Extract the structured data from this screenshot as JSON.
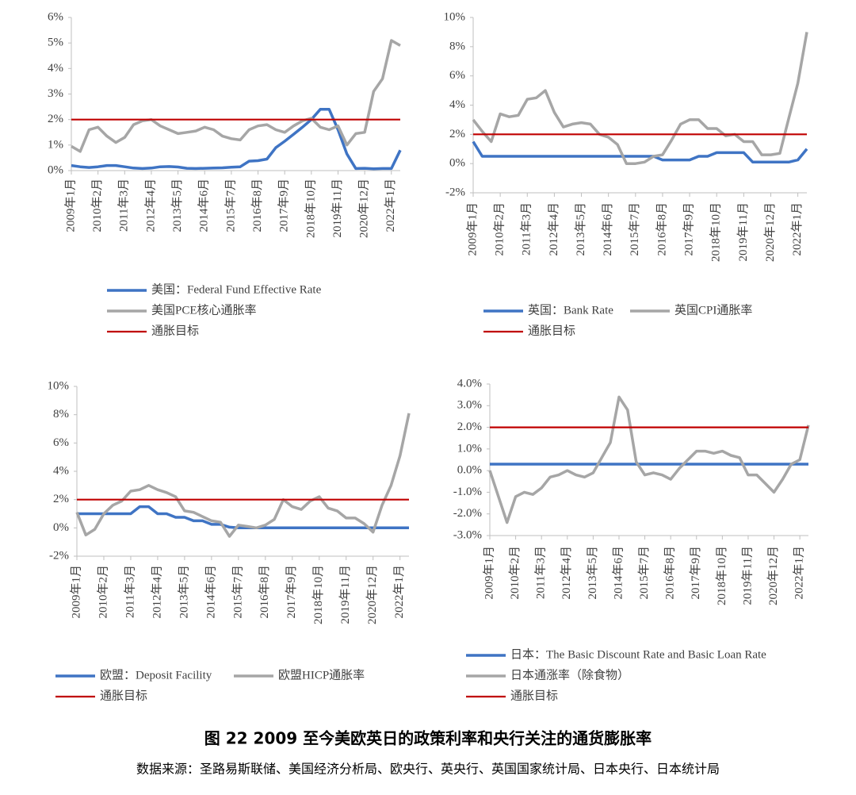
{
  "chart_data": [
    {
      "type": "line",
      "categories": [
        "2009年1月",
        null,
        null,
        "2010年2月",
        null,
        null,
        "2011年3月",
        null,
        null,
        "2012年4月",
        null,
        null,
        "2013年5月",
        null,
        null,
        "2014年6月",
        null,
        null,
        "2015年7月",
        null,
        null,
        "2016年8月",
        null,
        null,
        "2017年9月",
        null,
        null,
        "2018年10月",
        null,
        null,
        "2019年11月",
        null,
        null,
        "2020年12月",
        null,
        null,
        "2022年1月",
        null
      ],
      "series": [
        {
          "name": "美国：Federal Fund Effective Rate",
          "color": "#3f74c4",
          "values": [
            0.2,
            0.15,
            0.12,
            0.15,
            0.2,
            0.2,
            0.15,
            0.1,
            0.08,
            0.1,
            0.15,
            0.16,
            0.14,
            0.09,
            0.08,
            0.09,
            0.1,
            0.11,
            0.13,
            0.15,
            0.37,
            0.39,
            0.45,
            0.9,
            1.15,
            1.42,
            1.7,
            2.0,
            2.4,
            2.4,
            1.6,
            0.65,
            0.08,
            0.09,
            0.07,
            0.08,
            0.08,
            0.8
          ]
        },
        {
          "name": "美国PCE核心通胀率",
          "color": "#a6a6a6",
          "values": [
            0.95,
            0.75,
            1.6,
            1.7,
            1.35,
            1.1,
            1.3,
            1.8,
            1.95,
            2.0,
            1.75,
            1.6,
            1.45,
            1.5,
            1.55,
            1.7,
            1.6,
            1.35,
            1.25,
            1.2,
            1.6,
            1.75,
            1.8,
            1.6,
            1.5,
            1.75,
            1.95,
            2.05,
            1.7,
            1.6,
            1.75,
            1.0,
            1.45,
            1.5,
            3.1,
            3.6,
            5.1,
            4.9
          ]
        },
        {
          "name": "通胀目标",
          "color": "#c00000",
          "values": [
            2,
            2,
            2,
            2,
            2,
            2,
            2,
            2,
            2,
            2,
            2,
            2,
            2,
            2,
            2,
            2,
            2,
            2,
            2,
            2,
            2,
            2,
            2,
            2,
            2,
            2,
            2,
            2,
            2,
            2,
            2,
            2,
            2,
            2,
            2,
            2,
            2,
            2
          ]
        }
      ],
      "ylim": [
        0,
        6
      ],
      "yticks": [
        {
          "value": 0,
          "label": "0%"
        },
        {
          "value": 1,
          "label": "1%"
        },
        {
          "value": 2,
          "label": "2%"
        },
        {
          "value": 3,
          "label": "3%"
        },
        {
          "value": 4,
          "label": "4%"
        },
        {
          "value": 5,
          "label": "5%"
        },
        {
          "value": 6,
          "label": "6%"
        }
      ]
    },
    {
      "type": "line",
      "categories": [
        "2009年1月",
        null,
        null,
        "2010年2月",
        null,
        null,
        "2011年3月",
        null,
        null,
        "2012年4月",
        null,
        null,
        "2013年5月",
        null,
        null,
        "2014年6月",
        null,
        null,
        "2015年7月",
        null,
        null,
        "2016年8月",
        null,
        null,
        "2017年9月",
        null,
        null,
        "2018年10月",
        null,
        null,
        "2019年11月",
        null,
        null,
        "2020年12月",
        null,
        null,
        "2022年1月",
        null
      ],
      "series": [
        {
          "name": "英国：Bank Rate",
          "color": "#3f74c4",
          "values": [
            1.5,
            0.5,
            0.5,
            0.5,
            0.5,
            0.5,
            0.5,
            0.5,
            0.5,
            0.5,
            0.5,
            0.5,
            0.5,
            0.5,
            0.5,
            0.5,
            0.5,
            0.5,
            0.5,
            0.5,
            0.5,
            0.25,
            0.25,
            0.25,
            0.25,
            0.5,
            0.5,
            0.75,
            0.75,
            0.75,
            0.75,
            0.1,
            0.1,
            0.1,
            0.1,
            0.1,
            0.25,
            1.0
          ]
        },
        {
          "name": "英国CPI通胀率",
          "color": "#a6a6a6",
          "values": [
            3.0,
            2.2,
            1.5,
            3.4,
            3.2,
            3.3,
            4.4,
            4.5,
            5.0,
            3.5,
            2.5,
            2.7,
            2.8,
            2.7,
            2.0,
            1.8,
            1.3,
            0.0,
            0.0,
            0.1,
            0.5,
            0.6,
            1.6,
            2.7,
            3.0,
            3.0,
            2.4,
            2.4,
            1.9,
            2.0,
            1.5,
            1.5,
            0.6,
            0.6,
            0.7,
            3.1,
            5.5,
            9.0
          ]
        },
        {
          "name": "通胀目标",
          "color": "#c00000",
          "values": [
            2,
            2,
            2,
            2,
            2,
            2,
            2,
            2,
            2,
            2,
            2,
            2,
            2,
            2,
            2,
            2,
            2,
            2,
            2,
            2,
            2,
            2,
            2,
            2,
            2,
            2,
            2,
            2,
            2,
            2,
            2,
            2,
            2,
            2,
            2,
            2,
            2,
            2
          ]
        }
      ],
      "ylim": [
        -2,
        10
      ],
      "yticks": [
        {
          "value": -2,
          "label": "-2%"
        },
        {
          "value": 0,
          "label": "0%"
        },
        {
          "value": 2,
          "label": "2%"
        },
        {
          "value": 4,
          "label": "4%"
        },
        {
          "value": 6,
          "label": "6%"
        },
        {
          "value": 8,
          "label": "8%"
        },
        {
          "value": 10,
          "label": "10%"
        }
      ]
    },
    {
      "type": "line",
      "categories": [
        "2009年1月",
        null,
        null,
        "2010年2月",
        null,
        null,
        "2011年3月",
        null,
        null,
        "2012年4月",
        null,
        null,
        "2013年5月",
        null,
        null,
        "2014年6月",
        null,
        null,
        "2015年7月",
        null,
        null,
        "2016年8月",
        null,
        null,
        "2017年9月",
        null,
        null,
        "2018年10月",
        null,
        null,
        "2019年11月",
        null,
        null,
        "2020年12月",
        null,
        null,
        "2022年1月",
        null
      ],
      "series": [
        {
          "name": "欧盟：Deposit Facility",
          "color": "#3f74c4",
          "values": [
            1.0,
            1.0,
            1.0,
            1.0,
            1.0,
            1.0,
            1.0,
            1.5,
            1.5,
            1.0,
            1.0,
            0.75,
            0.75,
            0.5,
            0.5,
            0.25,
            0.25,
            0.05,
            0,
            0,
            0,
            0,
            0,
            0,
            0,
            0,
            0,
            0,
            0,
            0,
            0,
            0,
            0,
            0,
            0,
            0,
            0,
            0
          ]
        },
        {
          "name": "欧盟HICP通胀率",
          "color": "#a6a6a6",
          "values": [
            1.1,
            -0.5,
            -0.1,
            1.0,
            1.6,
            1.9,
            2.6,
            2.7,
            3.0,
            2.7,
            2.5,
            2.2,
            1.2,
            1.1,
            0.8,
            0.5,
            0.4,
            -0.6,
            0.2,
            0.1,
            0.0,
            0.2,
            0.6,
            2.0,
            1.5,
            1.3,
            1.9,
            2.2,
            1.4,
            1.2,
            0.7,
            0.7,
            0.3,
            -0.3,
            1.6,
            3.0,
            5.1,
            8.1
          ]
        },
        {
          "name": "通胀目标",
          "color": "#c00000",
          "values": [
            2,
            2,
            2,
            2,
            2,
            2,
            2,
            2,
            2,
            2,
            2,
            2,
            2,
            2,
            2,
            2,
            2,
            2,
            2,
            2,
            2,
            2,
            2,
            2,
            2,
            2,
            2,
            2,
            2,
            2,
            2,
            2,
            2,
            2,
            2,
            2,
            2,
            2
          ]
        }
      ],
      "ylim": [
        -2,
        10
      ],
      "yticks": [
        {
          "value": -2,
          "label": "-2%"
        },
        {
          "value": 0,
          "label": "0%"
        },
        {
          "value": 2,
          "label": "2%"
        },
        {
          "value": 4,
          "label": "4%"
        },
        {
          "value": 6,
          "label": "6%"
        },
        {
          "value": 8,
          "label": "8%"
        },
        {
          "value": 10,
          "label": "10%"
        }
      ]
    },
    {
      "type": "line",
      "categories": [
        "2009年1月",
        null,
        null,
        "2010年2月",
        null,
        null,
        "2011年3月",
        null,
        null,
        "2012年4月",
        null,
        null,
        "2013年5月",
        null,
        null,
        "2014年6月",
        null,
        null,
        "2015年7月",
        null,
        null,
        "2016年8月",
        null,
        null,
        "2017年9月",
        null,
        null,
        "2018年10月",
        null,
        null,
        "2019年11月",
        null,
        null,
        "2020年12月",
        null,
        null,
        "2022年1月",
        null
      ],
      "series": [
        {
          "name": "日本：The Basic Discount Rate and Basic Loan Rate",
          "color": "#3f74c4",
          "values": [
            0.3,
            0.3,
            0.3,
            0.3,
            0.3,
            0.3,
            0.3,
            0.3,
            0.3,
            0.3,
            0.3,
            0.3,
            0.3,
            0.3,
            0.3,
            0.3,
            0.3,
            0.3,
            0.3,
            0.3,
            0.3,
            0.3,
            0.3,
            0.3,
            0.3,
            0.3,
            0.3,
            0.3,
            0.3,
            0.3,
            0.3,
            0.3,
            0.3,
            0.3,
            0.3,
            0.3,
            0.3,
            0.3
          ]
        },
        {
          "name": "日本通涨率（除食物）",
          "color": "#a6a6a6",
          "values": [
            0.0,
            -1.2,
            -2.4,
            -1.2,
            -1.0,
            -1.1,
            -0.8,
            -0.3,
            -0.2,
            0.0,
            -0.2,
            -0.3,
            -0.1,
            0.6,
            1.3,
            3.4,
            2.8,
            0.4,
            -0.2,
            -0.1,
            -0.2,
            -0.4,
            0.1,
            0.5,
            0.9,
            0.9,
            0.8,
            0.9,
            0.7,
            0.6,
            -0.2,
            -0.2,
            -0.6,
            -1.0,
            -0.4,
            0.3,
            0.5,
            2.1
          ]
        },
        {
          "name": "通胀目标",
          "color": "#c00000",
          "values": [
            2,
            2,
            2,
            2,
            2,
            2,
            2,
            2,
            2,
            2,
            2,
            2,
            2,
            2,
            2,
            2,
            2,
            2,
            2,
            2,
            2,
            2,
            2,
            2,
            2,
            2,
            2,
            2,
            2,
            2,
            2,
            2,
            2,
            2,
            2,
            2,
            2,
            2
          ]
        }
      ],
      "ylim": [
        -3,
        4
      ],
      "yticks": [
        {
          "value": -3,
          "label": "-3.0%"
        },
        {
          "value": -2,
          "label": "-2.0%"
        },
        {
          "value": -1,
          "label": "-1.0%"
        },
        {
          "value": 0,
          "label": "0.0%"
        },
        {
          "value": 1,
          "label": "1.0%"
        },
        {
          "value": 2,
          "label": "2.0%"
        },
        {
          "value": 3,
          "label": "3.0%"
        },
        {
          "value": 4,
          "label": "4.0%"
        }
      ]
    }
  ],
  "caption": {
    "title": "图 22 2009 至今美欧英日的政策利率和央行关注的通货膨胀率",
    "source": "数据来源：圣路易斯联储、美国经济分析局、欧央行、英央行、英国国家统计局、日本央行、日本统计局"
  }
}
